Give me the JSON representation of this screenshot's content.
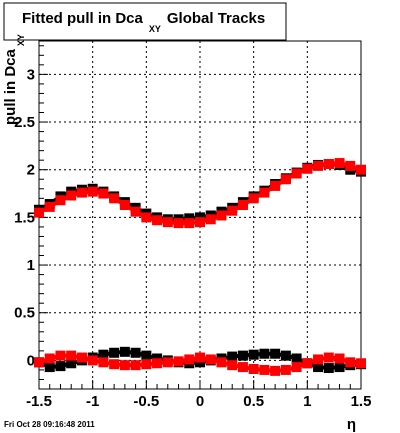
{
  "chart_data": {
    "type": "scatter",
    "title": {
      "main": "Fitted pull in Dca",
      "subscript": "XY",
      "suffix": "Global Tracks"
    },
    "xlabel": "η",
    "ylabel": {
      "main": "pull in Dca",
      "subscript": "XY"
    },
    "xlim": [
      -1.5,
      1.5
    ],
    "ylim": [
      -0.3,
      3.35
    ],
    "x_ticks": [
      "-1.5",
      "-1",
      "-0.5",
      "0",
      "0.5",
      "1",
      "1.5"
    ],
    "y_ticks": [
      "0",
      "0.5",
      "1",
      "1.5",
      "2",
      "2.5",
      "3"
    ],
    "grid": true,
    "legend": "none",
    "timestamp": "Fri Oct 28 09:16:48 2011",
    "series": [
      {
        "color": "#000000",
        "marker": "square",
        "x": [
          -1.5,
          -1.4,
          -1.3,
          -1.2,
          -1.1,
          -1.0,
          -0.9,
          -0.8,
          -0.7,
          -0.6,
          -0.5,
          -0.4,
          -0.3,
          -0.2,
          -0.1,
          0.0,
          0.1,
          0.2,
          0.3,
          0.4,
          0.5,
          0.6,
          0.7,
          0.8,
          0.9,
          1.0,
          1.1,
          1.2,
          1.3,
          1.4,
          1.5
        ],
        "y": [
          1.58,
          1.64,
          1.72,
          1.77,
          1.79,
          1.8,
          1.77,
          1.72,
          1.66,
          1.6,
          1.54,
          1.5,
          1.48,
          1.48,
          1.49,
          1.5,
          1.52,
          1.56,
          1.6,
          1.66,
          1.72,
          1.78,
          1.85,
          1.91,
          1.97,
          2.02,
          2.05,
          2.06,
          2.05,
          2.0,
          1.98
        ]
      },
      {
        "color": "#ff0000",
        "marker": "square",
        "x": [
          -1.5,
          -1.4,
          -1.3,
          -1.2,
          -1.1,
          -1.0,
          -0.9,
          -0.8,
          -0.7,
          -0.6,
          -0.5,
          -0.4,
          -0.3,
          -0.2,
          -0.1,
          0.0,
          0.1,
          0.2,
          0.3,
          0.4,
          0.5,
          0.6,
          0.7,
          0.8,
          0.9,
          1.0,
          1.1,
          1.2,
          1.3,
          1.4,
          1.5
        ],
        "y": [
          1.55,
          1.61,
          1.68,
          1.73,
          1.76,
          1.77,
          1.75,
          1.7,
          1.63,
          1.56,
          1.5,
          1.47,
          1.45,
          1.44,
          1.44,
          1.45,
          1.48,
          1.52,
          1.57,
          1.63,
          1.7,
          1.76,
          1.83,
          1.9,
          1.96,
          2.01,
          2.04,
          2.06,
          2.07,
          2.04,
          2.0
        ]
      },
      {
        "color": "#000000",
        "marker": "square",
        "x": [
          -1.5,
          -1.4,
          -1.3,
          -1.2,
          -1.1,
          -1.0,
          -0.9,
          -0.8,
          -0.7,
          -0.6,
          -0.5,
          -0.4,
          -0.3,
          -0.2,
          -0.1,
          0.0,
          0.1,
          0.2,
          0.3,
          0.4,
          0.5,
          0.6,
          0.7,
          0.8,
          0.9,
          1.0,
          1.1,
          1.2,
          1.3,
          1.4,
          1.5
        ],
        "y": [
          -0.02,
          -0.07,
          -0.06,
          -0.03,
          0.0,
          0.03,
          0.06,
          0.08,
          0.09,
          0.08,
          0.05,
          0.02,
          0.0,
          -0.02,
          -0.03,
          -0.02,
          0.0,
          0.02,
          0.04,
          0.05,
          0.06,
          0.07,
          0.07,
          0.05,
          0.02,
          -0.03,
          -0.07,
          -0.08,
          -0.07,
          -0.05,
          -0.04
        ]
      },
      {
        "color": "#ff0000",
        "marker": "square",
        "x": [
          -1.5,
          -1.4,
          -1.3,
          -1.2,
          -1.1,
          -1.0,
          -0.9,
          -0.8,
          -0.7,
          -0.6,
          -0.5,
          -0.4,
          -0.3,
          -0.2,
          -0.1,
          0.0,
          0.1,
          0.2,
          0.3,
          0.4,
          0.5,
          0.6,
          0.7,
          0.8,
          0.9,
          1.0,
          1.1,
          1.2,
          1.3,
          1.4,
          1.5
        ],
        "y": [
          -0.02,
          0.02,
          0.05,
          0.05,
          0.03,
          0.0,
          -0.02,
          -0.04,
          -0.05,
          -0.05,
          -0.04,
          -0.03,
          -0.02,
          -0.01,
          0.01,
          0.03,
          0.01,
          -0.02,
          -0.05,
          -0.07,
          -0.09,
          -0.1,
          -0.11,
          -0.1,
          -0.07,
          -0.03,
          0.01,
          0.03,
          0.02,
          -0.02,
          -0.03
        ]
      }
    ]
  }
}
